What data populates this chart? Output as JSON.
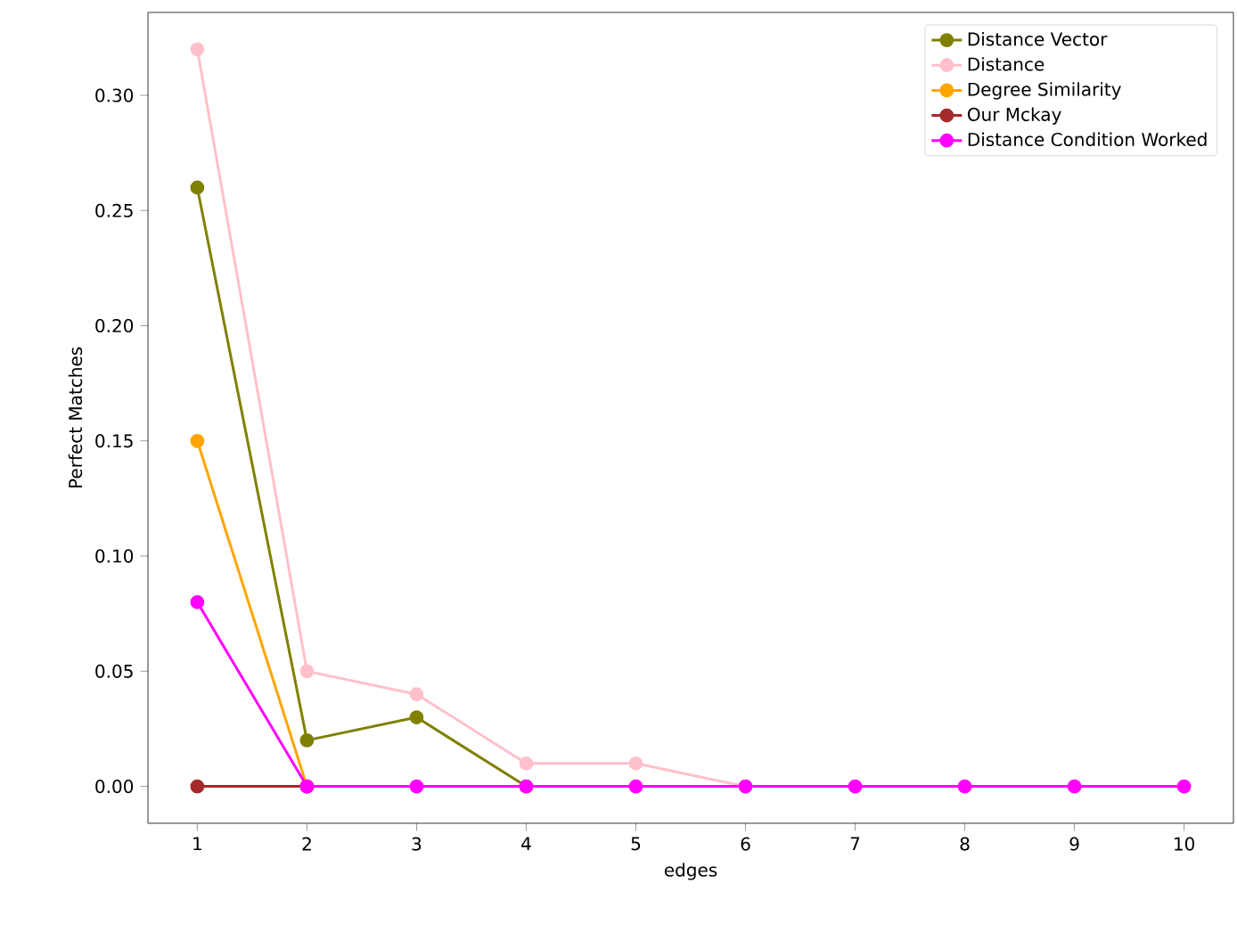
{
  "chart_data": {
    "type": "line",
    "xlabel": "edges",
    "ylabel": "Perfect Matches",
    "x": [
      1,
      2,
      3,
      4,
      5,
      6,
      7,
      8,
      9,
      10
    ],
    "series": [
      {
        "name": "Distance Vector",
        "color": "#808000",
        "values": [
          0.26,
          0.02,
          0.03,
          0,
          null,
          null,
          null,
          null,
          null,
          null
        ]
      },
      {
        "name": "Distance",
        "color": "#ffc0cb",
        "values": [
          0.32,
          0.05,
          0.04,
          0.01,
          0.01,
          0,
          null,
          null,
          null,
          null
        ]
      },
      {
        "name": "Degree Similarity",
        "color": "#ffa500",
        "values": [
          0.15,
          0,
          null,
          null,
          null,
          null,
          null,
          null,
          null,
          null
        ]
      },
      {
        "name": "Our Mckay",
        "color": "#a52a2a",
        "values": [
          0,
          0,
          null,
          null,
          null,
          null,
          null,
          null,
          null,
          null
        ]
      },
      {
        "name": "Distance Condition Worked",
        "color": "#ff00ff",
        "values": [
          0.08,
          0,
          0,
          0,
          0,
          0,
          0,
          0,
          0,
          0
        ]
      }
    ],
    "xlim": [
      0.55,
      10.45
    ],
    "ylim": [
      -0.016,
      0.336
    ],
    "xticks": [
      1,
      2,
      3,
      4,
      5,
      6,
      7,
      8,
      9,
      10
    ],
    "yticks": [
      {
        "value": 0,
        "label": "0.00"
      },
      {
        "value": 0.05,
        "label": "0.05"
      },
      {
        "value": 0.1,
        "label": "0.10"
      },
      {
        "value": 0.15,
        "label": "0.15"
      },
      {
        "value": 0.2,
        "label": "0.20"
      },
      {
        "value": 0.25,
        "label": "0.25"
      },
      {
        "value": 0.3,
        "label": "0.30"
      }
    ],
    "grid": false,
    "legend": "top right",
    "marker": "circle",
    "line_style": "solid"
  }
}
